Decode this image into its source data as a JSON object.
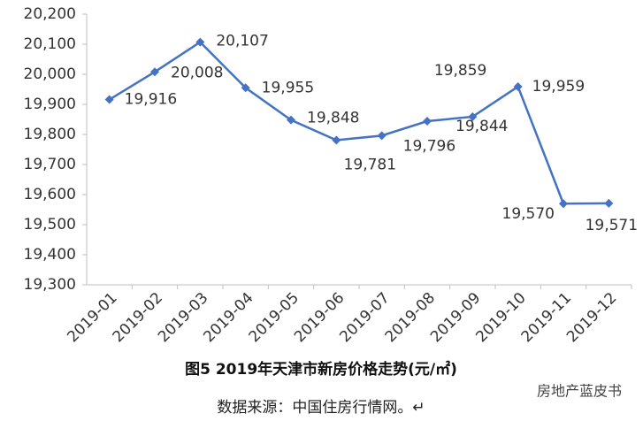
{
  "chart_data": {
    "type": "line",
    "title": "图5  2019年天津市新房价格走势(元/㎡)",
    "source": "数据来源：中国住房行情网。↵",
    "watermark": "房地产蓝皮书",
    "categories": [
      "2019-01",
      "2019-02",
      "2019-03",
      "2019-04",
      "2019-05",
      "2019-06",
      "2019-07",
      "2019-08",
      "2019-09",
      "2019-10",
      "2019-11",
      "2019-12"
    ],
    "series": [
      {
        "name": "新房价格",
        "color": "#4472c4",
        "values": [
          19916,
          20008,
          20107,
          19955,
          19848,
          19781,
          19796,
          19844,
          19859,
          19959,
          19570,
          19571
        ],
        "value_labels": [
          "19,916",
          "20,008",
          "20,107",
          "19,955",
          "19,848",
          "19,781",
          "19,796",
          "19,844",
          "19,859",
          "19,959",
          "19,570",
          "19,571"
        ]
      }
    ],
    "ylim": [
      19300,
      20200
    ],
    "yticks": [
      {
        "value": 19300,
        "label": "19,300"
      },
      {
        "value": 19400,
        "label": "19,400"
      },
      {
        "value": 19500,
        "label": "19,500"
      },
      {
        "value": 19600,
        "label": "19,600"
      },
      {
        "value": 19700,
        "label": "19,700"
      },
      {
        "value": 19800,
        "label": "19,800"
      },
      {
        "value": 19900,
        "label": "19,900"
      },
      {
        "value": 20000,
        "label": "20,000"
      },
      {
        "value": 20100,
        "label": "20,100"
      },
      {
        "value": 20200,
        "label": "20,200"
      }
    ],
    "grid": false
  }
}
